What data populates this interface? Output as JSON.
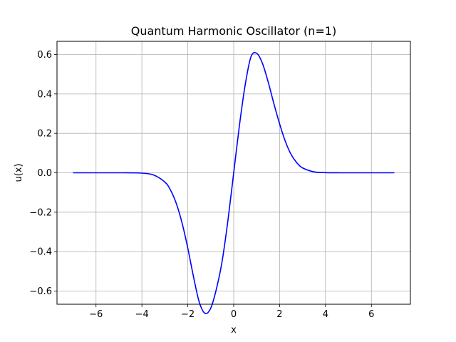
{
  "chart_data": {
    "type": "line",
    "title": "Quantum Harmonic Oscillator (n=1)",
    "xlabel": "x",
    "ylabel": "u(x)",
    "xlim": [
      -7.7,
      7.7
    ],
    "ylim": [
      -0.667,
      0.667
    ],
    "xticks": [
      -6,
      -4,
      -2,
      0,
      2,
      4,
      6
    ],
    "xtick_labels": [
      "−6",
      "−4",
      "−2",
      "0",
      "2",
      "4",
      "6"
    ],
    "yticks": [
      -0.6,
      -0.4,
      -0.2,
      0.0,
      0.2,
      0.4,
      0.6
    ],
    "ytick_labels": [
      "−0.6",
      "−0.4",
      "−0.2",
      "0.0",
      "0.2",
      "0.4",
      "0.6"
    ],
    "grid": true,
    "series": [
      {
        "color": "#0000ff",
        "x": [
          -7,
          -6,
          -5,
          -4.5,
          -4,
          -3.5,
          -3,
          -2.75,
          -2.5,
          -2.25,
          -2,
          -1.75,
          -1.5,
          -1.25,
          -1,
          -0.75,
          -0.5,
          -0.25,
          0,
          0.25,
          0.5,
          0.75,
          1,
          1.25,
          1.5,
          1.75,
          2,
          2.25,
          2.5,
          2.75,
          3,
          3.5,
          4,
          4.5,
          5,
          6,
          7
        ],
        "y": [
          0.0,
          0.0,
          -0.0,
          -0.0001,
          -0.0018,
          -0.0109,
          -0.0471,
          -0.0886,
          -0.1563,
          -0.2546,
          -0.3827,
          -0.5285,
          -0.6566,
          -0.7131,
          -0.6866,
          -0.5879,
          -0.4457,
          -0.2405,
          0.0,
          0.2405,
          0.4457,
          0.5879,
          0.6066,
          0.5559,
          0.4615,
          0.3514,
          0.2487,
          0.1596,
          0.0934,
          0.0508,
          0.0249,
          0.0047,
          0.0006,
          0.0001,
          0.0,
          0.0,
          0.0
        ]
      }
    ]
  }
}
